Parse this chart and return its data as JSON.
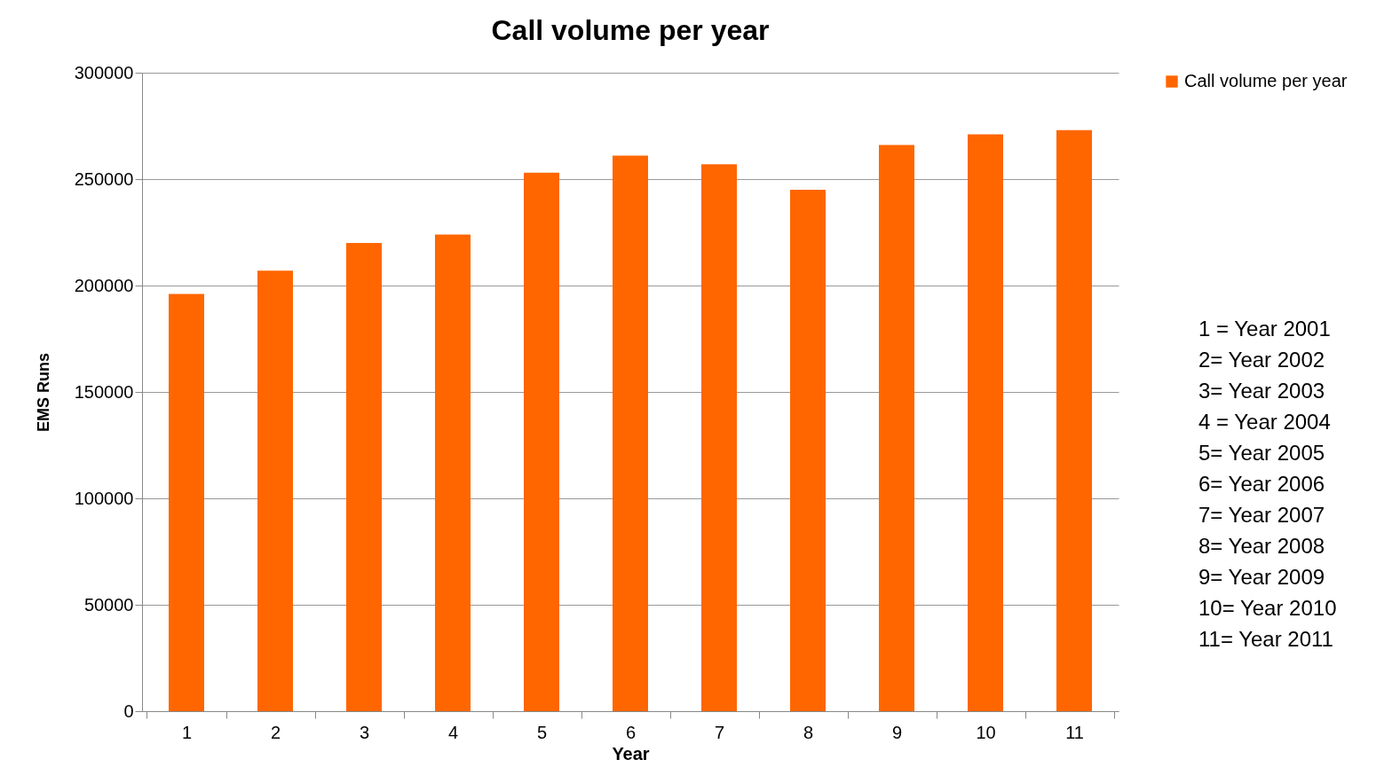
{
  "chart_data": {
    "type": "bar",
    "title": "Call volume per year",
    "xlabel": "Year",
    "ylabel": "EMS Runs",
    "categories": [
      "1",
      "2",
      "3",
      "4",
      "5",
      "6",
      "7",
      "8",
      "9",
      "10",
      "11"
    ],
    "series": [
      {
        "name": "Call volume per year",
        "color": "#ff6600",
        "values": [
          196000,
          207000,
          220000,
          224000,
          253000,
          261000,
          257000,
          245000,
          266000,
          271000,
          273000
        ]
      }
    ],
    "ylim": [
      0,
      300000
    ],
    "yticks": [
      0,
      50000,
      100000,
      150000,
      200000,
      250000,
      300000
    ],
    "grid": "y",
    "legend": "right",
    "annotations": [
      "1 =  Year 2001",
      "2= Year 2002",
      "3= Year 2003",
      "4 = Year 2004",
      "5= Year 2005",
      "6= Year 2006",
      "7= Year 2007",
      "8= Year 2008",
      "9= Year 2009",
      "10= Year 2010",
      "11= Year 2011"
    ]
  }
}
